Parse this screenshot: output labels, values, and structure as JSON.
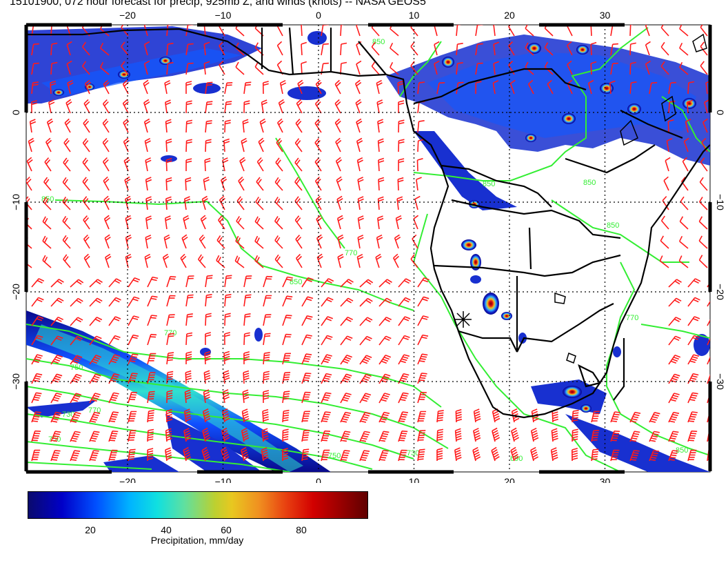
{
  "title": "15101900, 072 hour forecast for precip, 925mb Z, and winds (knots) -- NASA GEOS5",
  "map": {
    "lon_ticks": [
      "−20",
      "−10",
      "0",
      "10",
      "20",
      "30"
    ],
    "lon_values": [
      -20,
      -10,
      0,
      10,
      20,
      30
    ],
    "lat_ticks": [
      "0",
      "−10",
      "−20",
      "−30"
    ],
    "lat_values": [
      0,
      -10,
      -20,
      -30
    ],
    "contour_labels": [
      "850",
      "850",
      "850",
      "850",
      "850",
      "770",
      "770",
      "770",
      "770",
      "750",
      "750",
      "750",
      "730",
      "730",
      "690",
      "850",
      "850"
    ],
    "colors": {
      "precip_low": "#0a0a8c",
      "precip_high": "#800000",
      "contours": "#33ee33",
      "wind_barbs": "#ff1a1a",
      "coast": "#000000"
    }
  },
  "colorbar": {
    "ticks": [
      "20",
      "40",
      "60",
      "80"
    ],
    "label": "Precipitation, mm/day"
  }
}
